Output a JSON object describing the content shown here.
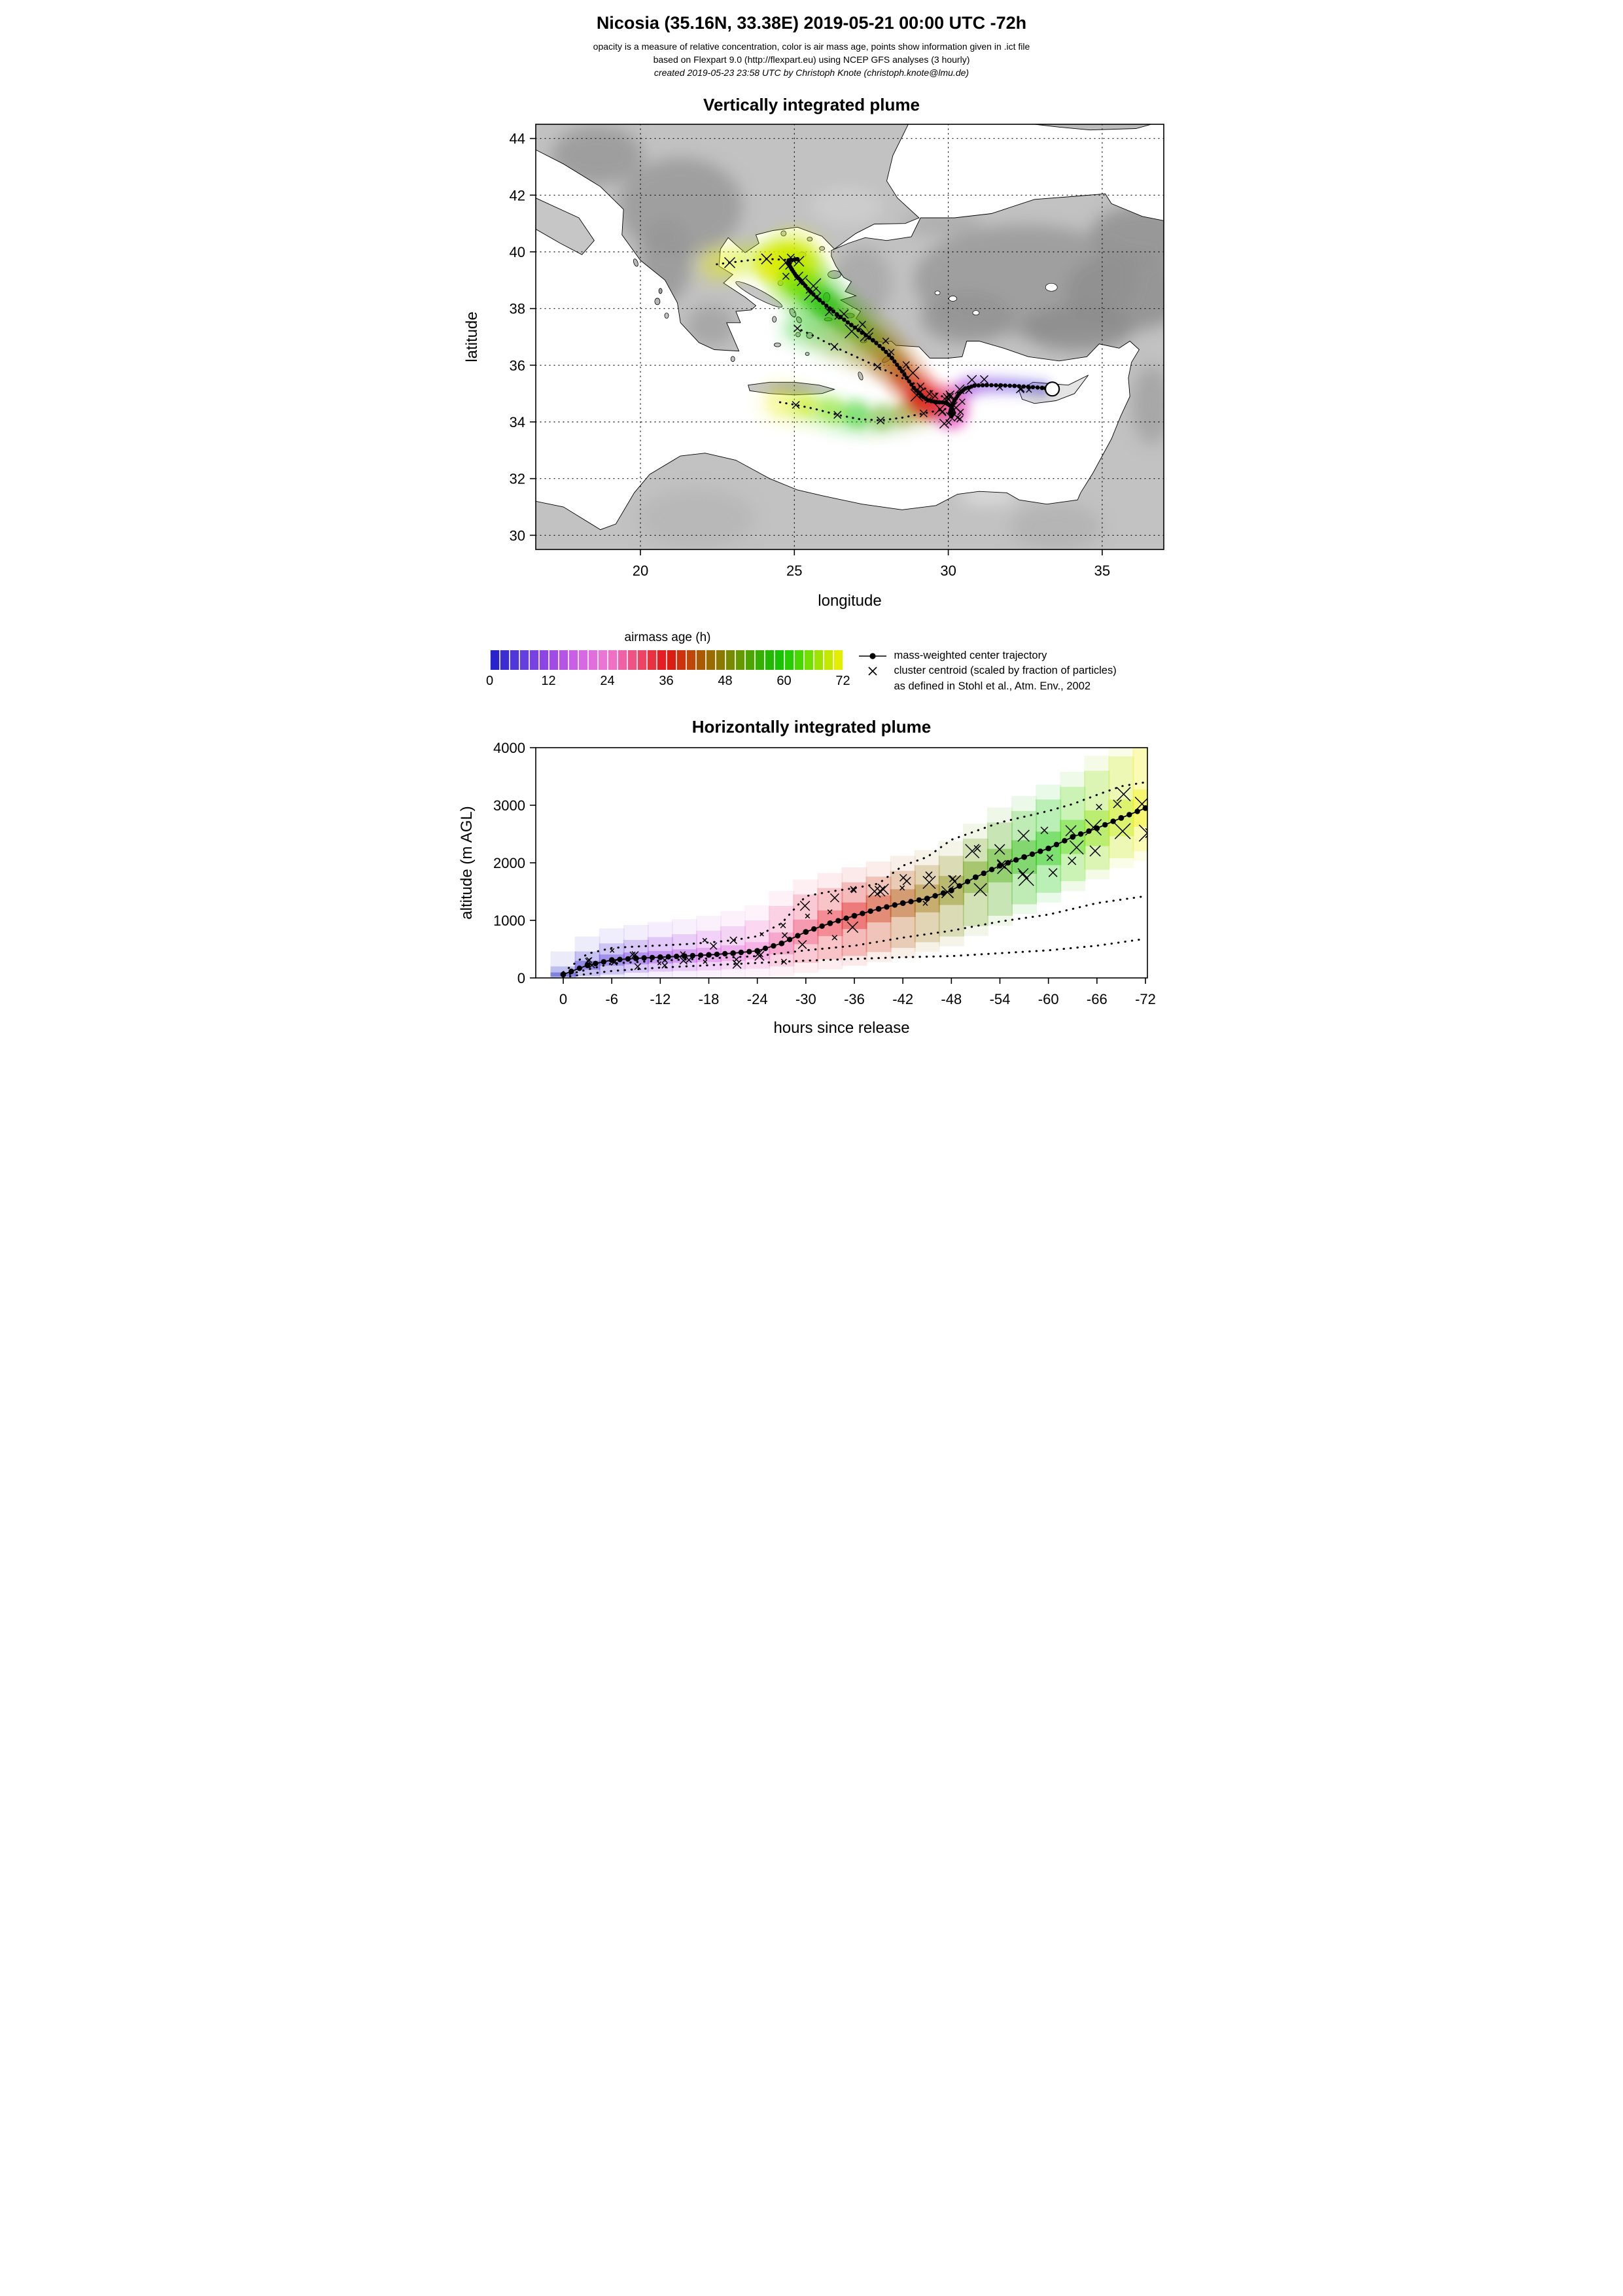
{
  "header": {
    "title": "Nicosia (35.16N, 33.38E) 2019-05-21 00:00 UTC -72h",
    "subtitle1": "opacity is a measure of relative concentration, color is air mass age, points show information given in .ict file",
    "subtitle2": "based on Flexpart 9.0 (http://flexpart.eu) using NCEP GFS analyses (3 hourly)",
    "subtitle3": "created 2019-05-23 23:58 UTC by Christoph Knote (christoph.knote@lmu.de)"
  },
  "colorbar": {
    "label": "airmass age (h)",
    "min": 0,
    "max": 72,
    "ticks": [
      0,
      12,
      24,
      36,
      48,
      60,
      72
    ],
    "stops": [
      {
        "age": 0,
        "color": "#1e1ec8"
      },
      {
        "age": 6,
        "color": "#5a3cdc"
      },
      {
        "age": 12,
        "color": "#9646e6"
      },
      {
        "age": 18,
        "color": "#d264e6"
      },
      {
        "age": 24,
        "color": "#f078d2"
      },
      {
        "age": 28,
        "color": "#f05a96"
      },
      {
        "age": 32,
        "color": "#eb3c50"
      },
      {
        "age": 36,
        "color": "#e11414"
      },
      {
        "age": 40,
        "color": "#c83c0a"
      },
      {
        "age": 44,
        "color": "#a06400"
      },
      {
        "age": 48,
        "color": "#828200"
      },
      {
        "age": 52,
        "color": "#5aa000"
      },
      {
        "age": 56,
        "color": "#28b400"
      },
      {
        "age": 60,
        "color": "#14c800"
      },
      {
        "age": 64,
        "color": "#5adc00"
      },
      {
        "age": 68,
        "color": "#b4e600"
      },
      {
        "age": 72,
        "color": "#f0f000"
      }
    ]
  },
  "legend": {
    "items": [
      {
        "symbol": "line-dot",
        "label": "mass-weighted center trajectory"
      },
      {
        "symbol": "x",
        "label": "cluster centroid (scaled by fraction of particles)"
      },
      {
        "symbol": "none",
        "label": "as defined in Stohl et al., Atm. Env., 2002"
      }
    ]
  },
  "chart_data": [
    {
      "type": "scatter",
      "title": "Vertically integrated plume",
      "xlabel": "longitude",
      "ylabel": "latitude",
      "xlim": [
        16.6,
        37.0
      ],
      "ylim": [
        29.5,
        44.5
      ],
      "xticks": [
        20,
        25,
        30,
        35
      ],
      "yticks": [
        30,
        32,
        34,
        36,
        38,
        40,
        42,
        44
      ],
      "grid": true,
      "release_point": {
        "lon": 33.38,
        "lat": 35.16
      },
      "center_trajectory": [
        [
          33.38,
          35.16,
          0
        ],
        [
          33.05,
          35.2,
          2
        ],
        [
          32.6,
          35.24,
          4
        ],
        [
          32.15,
          35.27,
          6
        ],
        [
          31.7,
          35.29,
          8
        ],
        [
          31.25,
          35.3,
          10
        ],
        [
          30.85,
          35.28,
          12
        ],
        [
          30.55,
          35.18,
          14
        ],
        [
          30.35,
          35.0,
          16
        ],
        [
          30.2,
          34.75,
          18
        ],
        [
          30.1,
          34.5,
          20
        ],
        [
          30.05,
          34.3,
          22
        ],
        [
          30.1,
          34.2,
          24
        ],
        [
          30.18,
          34.32,
          26
        ],
        [
          30.1,
          34.55,
          28
        ],
        [
          29.9,
          34.68,
          30
        ],
        [
          29.62,
          34.7,
          32
        ],
        [
          29.35,
          34.76,
          34
        ],
        [
          29.12,
          34.92,
          36
        ],
        [
          28.88,
          35.2,
          38
        ],
        [
          28.65,
          35.55,
          40
        ],
        [
          28.42,
          35.9,
          42
        ],
        [
          28.17,
          36.25,
          44
        ],
        [
          27.88,
          36.58,
          46
        ],
        [
          27.55,
          36.88,
          48
        ],
        [
          27.2,
          37.15,
          50
        ],
        [
          26.85,
          37.42,
          52
        ],
        [
          26.5,
          37.7,
          54
        ],
        [
          26.15,
          38.0,
          56
        ],
        [
          25.82,
          38.3,
          58
        ],
        [
          25.52,
          38.6,
          60
        ],
        [
          25.27,
          38.9,
          62
        ],
        [
          25.06,
          39.15,
          64
        ],
        [
          24.92,
          39.38,
          66
        ],
        [
          24.82,
          39.56,
          68
        ],
        [
          24.82,
          39.7,
          70
        ],
        [
          25.1,
          39.74,
          72
        ]
      ],
      "dotted_branches": [
        {
          "ages": [
            44,
            72
          ],
          "points": [
            [
              29.9,
              34.45
            ],
            [
              29.2,
              34.3
            ],
            [
              28.5,
              34.15
            ],
            [
              27.8,
              34.05
            ],
            [
              27.1,
              34.1
            ],
            [
              26.4,
              34.25
            ],
            [
              25.7,
              34.45
            ],
            [
              25.05,
              34.6
            ],
            [
              24.5,
              34.7
            ]
          ]
        },
        {
          "ages": [
            30,
            60
          ],
          "points": [
            [
              29.8,
              34.9
            ],
            [
              29.1,
              35.25
            ],
            [
              28.4,
              35.6
            ],
            [
              27.7,
              35.95
            ],
            [
              27.0,
              36.3
            ],
            [
              26.3,
              36.65
            ],
            [
              25.7,
              37.0
            ],
            [
              25.1,
              37.3
            ]
          ]
        },
        {
          "ages": [
            66,
            72
          ],
          "points": [
            [
              24.7,
              39.72
            ],
            [
              24.1,
              39.75
            ],
            [
              23.5,
              39.7
            ],
            [
              22.9,
              39.62
            ],
            [
              22.4,
              39.55
            ]
          ]
        }
      ],
      "plume_patches": [
        [
          30.08,
          34.35,
          26,
          22,
          0.5
        ],
        [
          30.0,
          34.6,
          20,
          26,
          0.4
        ],
        [
          30.18,
          34.18,
          16,
          24,
          0.45
        ],
        [
          29.3,
          34.65,
          24,
          36,
          0.45
        ],
        [
          28.95,
          34.85,
          18,
          38,
          0.35
        ],
        [
          29.62,
          34.5,
          16,
          34,
          0.4
        ],
        [
          24.6,
          39.6,
          32,
          71,
          0.5
        ],
        [
          25.2,
          39.5,
          26,
          68,
          0.4
        ],
        [
          24.15,
          39.55,
          24,
          72,
          0.38
        ],
        [
          25.0,
          39.0,
          24,
          64,
          0.35
        ],
        [
          26.0,
          38.1,
          20,
          58,
          0.3
        ],
        [
          27.0,
          34.3,
          22,
          60,
          0.28
        ],
        [
          26.2,
          34.45,
          20,
          66,
          0.3
        ],
        [
          25.4,
          34.6,
          18,
          70,
          0.3
        ],
        [
          27.9,
          34.2,
          20,
          52,
          0.25
        ],
        [
          28.6,
          34.3,
          18,
          46,
          0.3
        ]
      ]
    },
    {
      "type": "scatter",
      "title": "Horizontally integrated plume",
      "xlabel": "hours since release",
      "ylabel": "altitude (m AGL)",
      "xlim": [
        0,
        -72
      ],
      "ylim": [
        0,
        4000
      ],
      "xticks": [
        0,
        -6,
        -12,
        -18,
        -24,
        -30,
        -36,
        -42,
        -48,
        -54,
        -60,
        -66,
        -72
      ],
      "yticks": [
        0,
        1000,
        2000,
        3000,
        4000
      ],
      "grid": false,
      "center_trajectory": [
        [
          0,
          60
        ],
        [
          -3,
          220
        ],
        [
          -6,
          310
        ],
        [
          -9,
          340
        ],
        [
          -12,
          360
        ],
        [
          -15,
          380
        ],
        [
          -18,
          400
        ],
        [
          -21,
          430
        ],
        [
          -24,
          470
        ],
        [
          -27,
          600
        ],
        [
          -30,
          800
        ],
        [
          -33,
          950
        ],
        [
          -36,
          1080
        ],
        [
          -39,
          1200
        ],
        [
          -42,
          1300
        ],
        [
          -45,
          1380
        ],
        [
          -48,
          1520
        ],
        [
          -51,
          1750
        ],
        [
          -54,
          1950
        ],
        [
          -57,
          2100
        ],
        [
          -60,
          2250
        ],
        [
          -63,
          2450
        ],
        [
          -66,
          2600
        ],
        [
          -69,
          2780
        ],
        [
          -72,
          2950
        ]
      ],
      "plume_bands": [
        [
          0,
          0,
          200
        ],
        [
          -3,
          30,
          460
        ],
        [
          -6,
          60,
          600
        ],
        [
          -9,
          90,
          660
        ],
        [
          -12,
          110,
          710
        ],
        [
          -15,
          120,
          760
        ],
        [
          -18,
          130,
          820
        ],
        [
          -21,
          150,
          900
        ],
        [
          -24,
          160,
          1000
        ],
        [
          -27,
          200,
          1250
        ],
        [
          -30,
          260,
          1450
        ],
        [
          -33,
          320,
          1560
        ],
        [
          -36,
          380,
          1660
        ],
        [
          -39,
          450,
          1760
        ],
        [
          -42,
          520,
          1860
        ],
        [
          -45,
          620,
          1960
        ],
        [
          -48,
          720,
          2120
        ],
        [
          -51,
          900,
          2420
        ],
        [
          -54,
          1080,
          2700
        ],
        [
          -57,
          1280,
          2900
        ],
        [
          -60,
          1480,
          3100
        ],
        [
          -63,
          1680,
          3320
        ],
        [
          -66,
          1880,
          3600
        ],
        [
          -69,
          2080,
          3850
        ],
        [
          -72,
          2200,
          4000
        ]
      ],
      "upper_dotted": [
        [
          0,
          100
        ],
        [
          -3,
          420
        ],
        [
          -6,
          520
        ],
        [
          -9,
          545
        ],
        [
          -12,
          565
        ],
        [
          -15,
          585
        ],
        [
          -18,
          615
        ],
        [
          -21,
          655
        ],
        [
          -24,
          725
        ],
        [
          -27,
          950
        ],
        [
          -30,
          1420
        ],
        [
          -33,
          1500
        ],
        [
          -36,
          1560
        ],
        [
          -39,
          1640
        ],
        [
          -42,
          1950
        ],
        [
          -45,
          2100
        ],
        [
          -48,
          2400
        ],
        [
          -51,
          2550
        ],
        [
          -54,
          2700
        ],
        [
          -57,
          2800
        ],
        [
          -60,
          2900
        ],
        [
          -63,
          3020
        ],
        [
          -66,
          3180
        ],
        [
          -69,
          3330
        ],
        [
          -72,
          3400
        ]
      ],
      "mid_dotted": [
        [
          0,
          40
        ],
        [
          -6,
          250
        ],
        [
          -12,
          300
        ],
        [
          -18,
          340
        ],
        [
          -24,
          380
        ],
        [
          -30,
          480
        ],
        [
          -36,
          560
        ],
        [
          -42,
          700
        ],
        [
          -48,
          820
        ],
        [
          -54,
          980
        ],
        [
          -60,
          1100
        ],
        [
          -66,
          1300
        ],
        [
          -72,
          1420
        ]
      ],
      "lower_dotted": [
        [
          0,
          15
        ],
        [
          -6,
          120
        ],
        [
          -12,
          180
        ],
        [
          -18,
          220
        ],
        [
          -24,
          260
        ],
        [
          -30,
          300
        ],
        [
          -36,
          330
        ],
        [
          -42,
          360
        ],
        [
          -48,
          380
        ],
        [
          -54,
          430
        ],
        [
          -60,
          480
        ],
        [
          -66,
          560
        ],
        [
          -72,
          680
        ]
      ]
    }
  ]
}
